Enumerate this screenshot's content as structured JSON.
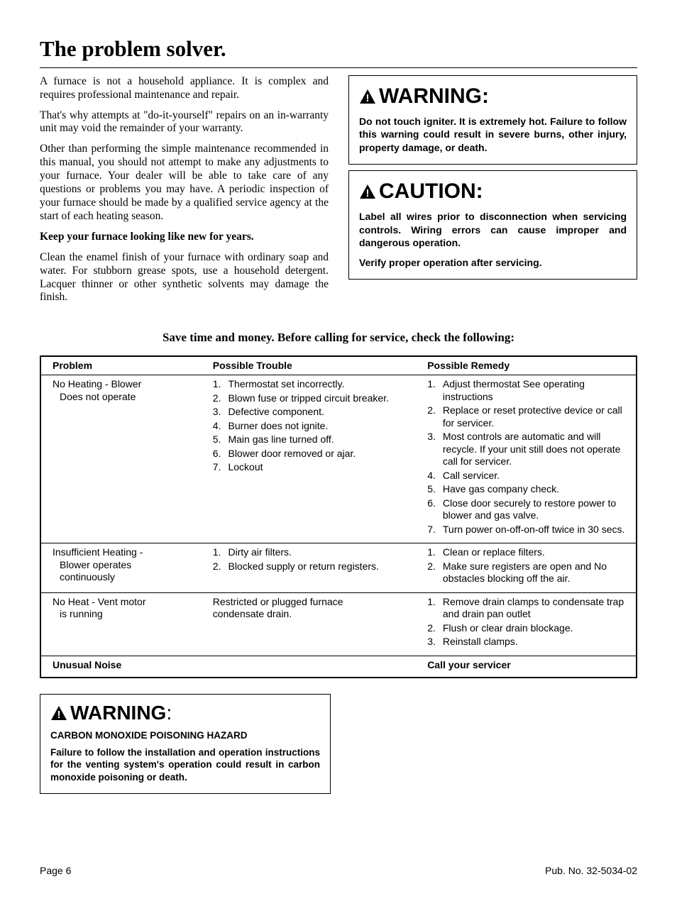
{
  "title": "The problem solver.",
  "intro": {
    "p1": "A furnace is not a household appliance. It is complex and requires professional maintenance and repair.",
    "p2": "That's why attempts at \"do-it-yourself\" repairs on an in-warranty unit may void the remainder of your warranty.",
    "p3": "Other than performing the simple maintenance recommended in this manual, you should not attempt to make any adjustments to your furnace. Your dealer will be able to take care of any questions or problems you may have. A periodic inspection of your furnace should  be made by a qualified service agency at the start of each heating season.",
    "p4_bold": "Keep your furnace looking like new for years.",
    "p5": "Clean the enamel finish of your furnace with ordinary soap and water. For stubborn grease spots, use a household detergent. Lacquer thinner or other synthetic solvents may damage the finish."
  },
  "warning_box": {
    "heading": "WARNING:",
    "text": "Do not touch igniter. It is extremely hot.  Failure to follow this warning could result in severe burns, other injury, property damage, or death."
  },
  "caution_box": {
    "heading": "CAUTION:",
    "p1": "Label all wires prior to disconnection when servicing controls.  Wiring errors can cause improper and dangerous operation.",
    "p2": "Verify proper operation after servicing."
  },
  "save_line": "Save time and money. Before calling for service, check the following:",
  "table": {
    "headers": {
      "c1": "Problem",
      "c2": "Possible Trouble",
      "c3": "Possible Remedy"
    },
    "rows": [
      {
        "problem_lines": [
          "No Heating - Blower",
          "Does not operate"
        ],
        "trouble": [
          {
            "n": "1.",
            "t": "Thermostat set incorrectly."
          },
          {
            "n": "2.",
            "t": "Blown fuse or tripped circuit breaker."
          },
          {
            "n": "3.",
            "t": "Defective component."
          },
          {
            "n": "4.",
            "t": "Burner does not ignite."
          },
          {
            "n": "5.",
            "t": "Main gas line turned off."
          },
          {
            "n": "6.",
            "t": "Blower door removed or ajar."
          },
          {
            "n": "7.",
            "t": "Lockout"
          }
        ],
        "remedy": [
          {
            "n": "1.",
            "t": "Adjust thermostat See operating instructions"
          },
          {
            "n": "2.",
            "t": "Replace or reset protective device or call for servicer."
          },
          {
            "n": "3.",
            "t": "Most controls are automatic and will recycle. If your unit still does not operate call for servicer."
          },
          {
            "n": "4.",
            "t": "Call servicer."
          },
          {
            "n": "5.",
            "t": "Have gas company check."
          },
          {
            "n": "6.",
            "t": "Close door securely to restore power to blower and gas valve."
          },
          {
            "n": "7.",
            "t": "Turn power on-off-on-off twice in 30 secs."
          }
        ]
      },
      {
        "problem_lines": [
          "Insufficient Heating -",
          "Blower operates",
          "continuously"
        ],
        "trouble": [
          {
            "n": "1.",
            "t": "Dirty air filters."
          },
          {
            "n": "2.",
            "t": "Blocked supply or return registers."
          }
        ],
        "remedy": [
          {
            "n": "1.",
            "t": "Clean or replace filters."
          },
          {
            "n": "2.",
            "t": "Make sure registers are open and No obstacles blocking off the air."
          }
        ]
      },
      {
        "problem_lines": [
          "No Heat - Vent motor",
          "is running"
        ],
        "trouble_plain": [
          "Restricted or plugged furnace",
          "condensate drain."
        ],
        "remedy": [
          {
            "n": "1.",
            "t": "Remove drain clamps to condensate trap and drain pan outlet"
          },
          {
            "n": "2.",
            "t": "Flush or clear drain blockage."
          },
          {
            "n": "3.",
            "t": "Reinstall clamps."
          }
        ]
      },
      {
        "problem_bold": "Unusual Noise",
        "remedy_bold": "Call your servicer"
      }
    ]
  },
  "co_box": {
    "heading": "WARNING",
    "subhead": "CARBON MONOXIDE POISONING HAZARD",
    "text": "Failure to follow the installation and operation instructions for the venting system's operation could result in carbon monoxide poisoning or death."
  },
  "footer": {
    "left": "Page 6",
    "right": "Pub. No. 32-5034-02"
  }
}
